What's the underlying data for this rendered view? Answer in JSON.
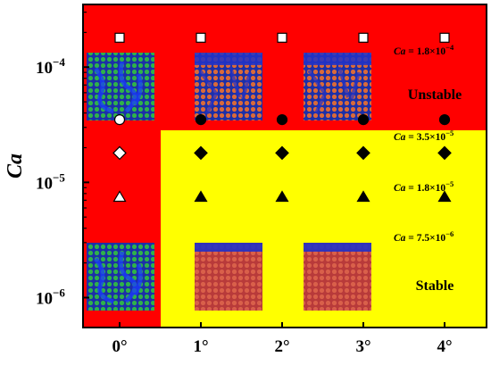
{
  "chart_data": {
    "type": "scatter",
    "title": "",
    "xlabel": "",
    "ylabel": "Ca",
    "x_categories": [
      "0°",
      "1°",
      "2°",
      "3°",
      "4°"
    ],
    "y_scale": "log",
    "ylim": [
      5.5e-07,
      0.00035
    ],
    "y_ticks": [
      {
        "value": 0.0001,
        "base": "10",
        "exp": "−4"
      },
      {
        "value": 1e-05,
        "base": "10",
        "exp": "−5"
      },
      {
        "value": 1e-06,
        "base": "10",
        "exp": "−6"
      }
    ],
    "grid": false,
    "colors": {
      "unstable": "#ff0000",
      "stable": "#ffff00",
      "marker": "#000000",
      "marker_open": "#ffffff"
    },
    "series": [
      {
        "marker": "square",
        "y": 0.00018,
        "points": [
          {
            "x": "0°",
            "regime": "unstable"
          },
          {
            "x": "1°",
            "regime": "unstable"
          },
          {
            "x": "2°",
            "regime": "unstable"
          },
          {
            "x": "3°",
            "regime": "unstable"
          },
          {
            "x": "4°",
            "regime": "unstable"
          }
        ]
      },
      {
        "marker": "circle",
        "y": 3.5e-05,
        "points": [
          {
            "x": "0°",
            "regime": "unstable"
          },
          {
            "x": "1°",
            "regime": "stable"
          },
          {
            "x": "2°",
            "regime": "stable"
          },
          {
            "x": "3°",
            "regime": "stable"
          },
          {
            "x": "4°",
            "regime": "stable"
          }
        ]
      },
      {
        "marker": "diamond",
        "y": 1.8e-05,
        "points": [
          {
            "x": "0°",
            "regime": "unstable"
          },
          {
            "x": "1°",
            "regime": "stable"
          },
          {
            "x": "2°",
            "regime": "stable"
          },
          {
            "x": "3°",
            "regime": "stable"
          },
          {
            "x": "4°",
            "regime": "stable"
          }
        ]
      },
      {
        "marker": "triangle",
        "y": 7.5e-06,
        "points": [
          {
            "x": "0°",
            "regime": "unstable"
          },
          {
            "x": "1°",
            "regime": "stable"
          },
          {
            "x": "2°",
            "regime": "stable"
          },
          {
            "x": "3°",
            "regime": "stable"
          },
          {
            "x": "4°",
            "regime": "stable"
          }
        ]
      }
    ],
    "annotations": [
      {
        "var": "Ca",
        "rest": " = 1.8×10",
        "exp": "−4"
      },
      {
        "var": "Ca",
        "rest": " = 3.5×10",
        "exp": "−5"
      },
      {
        "var": "Ca",
        "rest": " = 1.8×10",
        "exp": "−5"
      },
      {
        "var": "Ca",
        "rest": " = 7.5×10",
        "exp": "−6"
      }
    ],
    "region_labels": {
      "unstable": "Unstable",
      "stable": "Stable"
    },
    "regions": [
      {
        "name": "unstable",
        "color": "#ff0000",
        "description": "all angles at Ca = 1.8×10^-4 and angle 0° at all Ca"
      },
      {
        "name": "stable",
        "color": "#ffff00",
        "description": "angles 1°–4° at Ca ≤ 3.5×10^-5"
      }
    ]
  }
}
